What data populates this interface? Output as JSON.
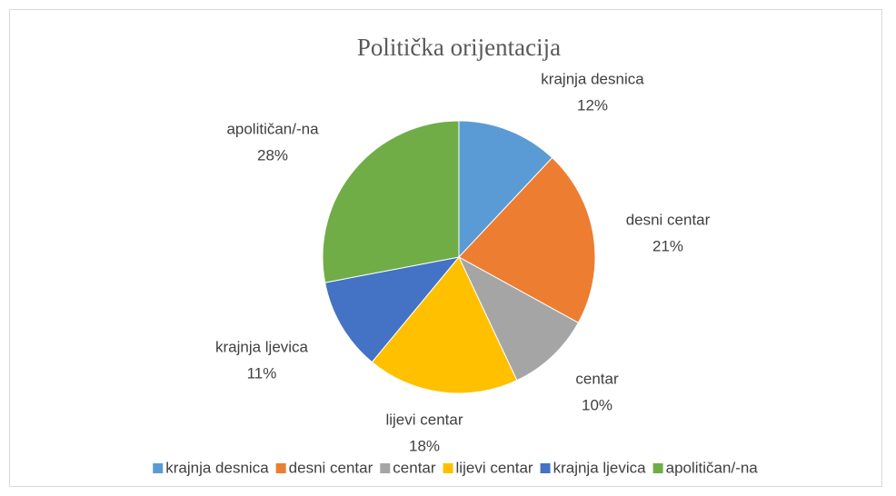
{
  "chart_data": {
    "type": "pie",
    "title": "Politička orijentacija",
    "categories": [
      "krajnja desnica",
      "desni centar",
      "centar",
      "lijevi centar",
      "krajnja ljevica",
      "apolitičan/-na"
    ],
    "values": [
      12,
      21,
      10,
      18,
      11,
      28
    ],
    "value_labels": [
      "12%",
      "21%",
      "10%",
      "18%",
      "11%",
      "28%"
    ],
    "colors": [
      "#5b9bd5",
      "#ed7d31",
      "#a5a5a5",
      "#ffc000",
      "#4472c4",
      "#70ad47"
    ],
    "legend": "bottom"
  }
}
